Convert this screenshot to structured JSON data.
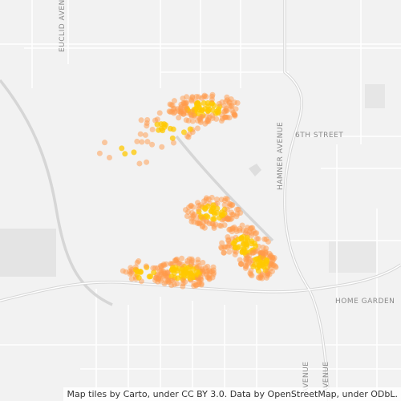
{
  "map": {
    "street_labels": [
      "EUCLID AVENUE",
      "HAMNER AVENUE",
      "6TH STREET",
      "HOME GARDEN",
      "AVENUE",
      "AVENUE"
    ],
    "attribution": "Map tiles by Carto, under CC BY 3.0. Data by OpenStreetMap, under ODbL."
  }
}
